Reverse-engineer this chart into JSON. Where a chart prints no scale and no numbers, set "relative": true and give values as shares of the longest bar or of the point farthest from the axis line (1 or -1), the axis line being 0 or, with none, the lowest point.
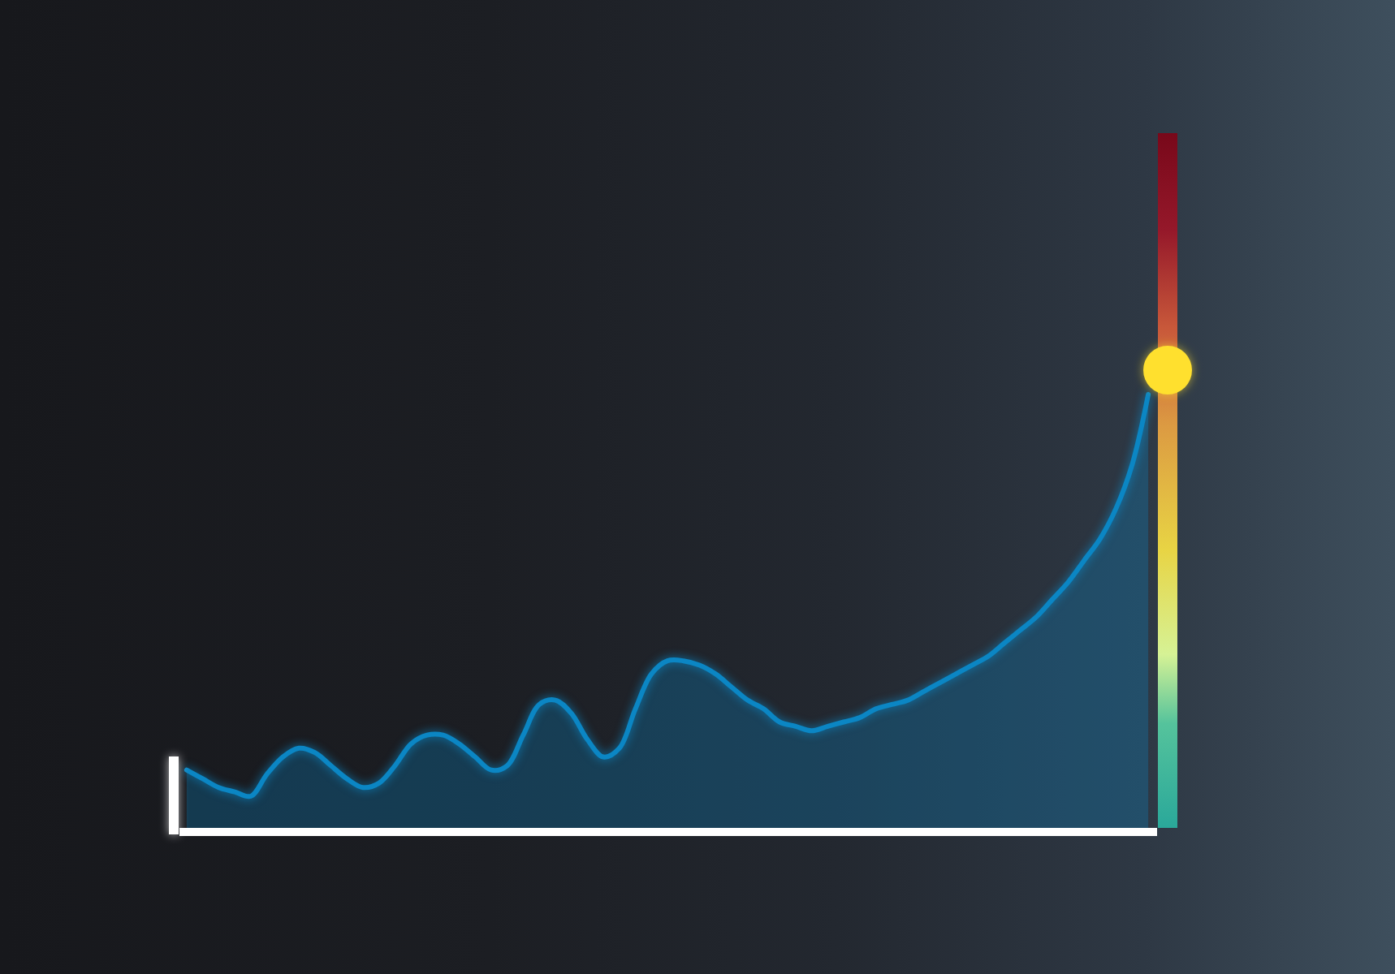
{
  "chart_data": {
    "type": "area",
    "relative": true,
    "categories": [
      null,
      null,
      null,
      null,
      null,
      null,
      null,
      null,
      null,
      null,
      null,
      null,
      null,
      null,
      null,
      null,
      null,
      null,
      null,
      null,
      null,
      null,
      null,
      null,
      null,
      null,
      null,
      null,
      null,
      null,
      null,
      null,
      null,
      null,
      null,
      null,
      null,
      null,
      null,
      null,
      null,
      null,
      null,
      null,
      null,
      null,
      null,
      null,
      null,
      null,
      null,
      null,
      null,
      null,
      null,
      null,
      null,
      null,
      null,
      null,
      null
    ],
    "series": [
      {
        "color": "#0b86c4",
        "values": [
          0.14,
          0.12,
          0.1,
          0.09,
          0.08,
          0.13,
          0.17,
          0.19,
          0.18,
          0.15,
          0.12,
          0.1,
          0.11,
          0.15,
          0.2,
          0.22,
          0.22,
          0.2,
          0.17,
          0.14,
          0.15,
          0.22,
          0.29,
          0.3,
          0.27,
          0.21,
          0.17,
          0.19,
          0.28,
          0.36,
          0.39,
          0.39,
          0.38,
          0.36,
          0.33,
          0.3,
          0.28,
          0.25,
          0.24,
          0.23,
          0.24,
          0.25,
          0.26,
          0.28,
          0.29,
          0.3,
          0.32,
          0.34,
          0.36,
          0.38,
          0.4,
          0.43,
          0.46,
          0.49,
          0.53,
          0.57,
          0.62,
          0.67,
          0.74,
          0.84,
          1
        ]
      }
    ]
  }
}
